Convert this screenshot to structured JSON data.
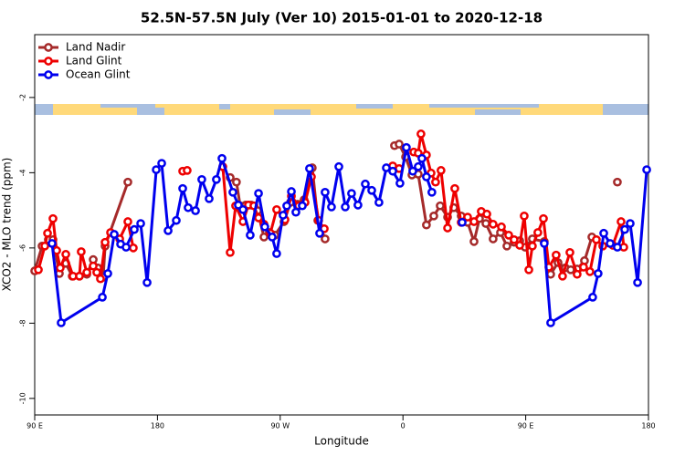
{
  "chart_data": {
    "type": "line",
    "title": "52.5N-57.5N July (Ver 10)   2015-01-01 to 2020-12-18",
    "x_label": "Longitude",
    "y_label": "XCO2 - MLO trend (ppm)",
    "xlim": [
      90,
      540
    ],
    "xticks": [
      {
        "value": 90,
        "label": "90 E"
      },
      180,
      {
        "value": 270,
        "label": "90 W"
      },
      {
        "value": 360,
        "label": "0"
      },
      {
        "value": 450,
        "label": "90 E"
      },
      {
        "value": 540,
        "label": "180"
      }
    ],
    "ylim": [
      -10.44,
      -0.33
    ],
    "yticks": [
      -10,
      -8,
      -6,
      -4,
      -2
    ],
    "legend": "top-left",
    "series": [
      {
        "name": "Land Nadir",
        "color": "#a52a2a",
        "x": [
          90.0,
          95.4,
          100.0,
          103.4,
          108.1,
          112.8,
          117.5,
          122.8,
          128.2,
          132.9,
          136.2,
          140.2,
          141.6,
          158.3,
          null,
          233.3,
          237.9,
          240.7,
          244.7,
          248.7,
          253.4,
          258.1,
          262.1,
          266.1,
          272.8,
          277.5,
          282.8,
          287.5,
          293.5,
          297.6,
          302.9,
          null,
          353.8,
          357.2,
          361.9,
          366.6,
          371.2,
          377.2,
          382.6,
          387.3,
          392.7,
          397.3,
          402.7,
          407.4,
          412.1,
          416.1,
          420.8,
          426.1,
          431.5,
          436.2,
          441.5,
          445.6,
          449.6,
          454.9,
          463.6,
          468.3,
          473.7,
          479.0,
          483.0,
          487.7,
          493.1,
          498.5,
          null,
          517.2
        ],
        "values": [
          -6.61,
          -5.95,
          -5.78,
          -5.78,
          -6.68,
          -6.41,
          -6.75,
          -6.75,
          -6.7,
          -6.31,
          -6.53,
          -6.78,
          -5.95,
          -4.25,
          null,
          -4.13,
          -4.25,
          -4.88,
          -4.86,
          -4.86,
          -5.01,
          -5.71,
          -5.59,
          -5.66,
          -5.3,
          -4.79,
          -4.84,
          -4.72,
          -3.87,
          -5.27,
          -5.76,
          null,
          -3.28,
          -3.24,
          -3.58,
          -4.06,
          -4.04,
          -5.39,
          -5.15,
          -4.88,
          -5.18,
          -4.93,
          -5.15,
          -5.32,
          -5.83,
          -5.22,
          -5.35,
          -5.76,
          -5.59,
          -5.95,
          -5.85,
          -5.81,
          -5.98,
          -5.76,
          -5.83,
          -6.7,
          -6.39,
          -6.53,
          -6.58,
          -6.56,
          -6.34,
          -5.71,
          null,
          -4.25
        ]
      },
      {
        "name": "Land Glint",
        "color": "#ee0000",
        "x": [
          92.7,
          97.4,
          99.4,
          103.4,
          106.1,
          108.7,
          112.8,
          118.1,
          122.8,
          124.1,
          128.2,
          132.9,
          135.5,
          138.2,
          141.6,
          145.6,
          152.3,
          158.3,
          162.3,
          null,
          198.5,
          201.8,
          null,
          227.9,
          233.3,
          237.3,
          242.7,
          246.7,
          250.7,
          254.1,
          258.1,
          262.8,
          267.4,
          273.5,
          278.2,
          283.5,
          288.2,
          292.9,
          298.2,
          302.3,
          null,
          352.5,
          357.2,
          null,
          367.9,
          371.2,
          373.2,
          377.2,
          380.6,
          383.9,
          387.9,
          392.7,
          398.0,
          402.7,
          407.4,
          412.1,
          417.4,
          421.5,
          426.1,
          432.2,
          437.5,
          441.5,
          445.6,
          448.9,
          452.3,
          454.9,
          458.9,
          463.0,
          467.0,
          472.3,
          477.0,
          482.4,
          487.7,
          492.4,
          497.1,
          501.8,
          506.5,
          513.9,
          519.9,
          521.9
        ],
        "values": [
          -6.58,
          -5.95,
          -5.61,
          -5.22,
          -6.07,
          -6.53,
          -6.17,
          -6.75,
          -6.75,
          -6.1,
          -6.65,
          -6.48,
          -6.65,
          -6.82,
          -5.85,
          -5.59,
          -5.76,
          -5.3,
          -6.0,
          null,
          -3.96,
          -3.94,
          null,
          -3.84,
          -6.12,
          -4.88,
          -5.3,
          -4.86,
          -4.88,
          -5.2,
          -5.37,
          -5.61,
          -4.98,
          -5.25,
          -4.62,
          -4.88,
          -4.79,
          -4.11,
          -5.27,
          -5.49,
          null,
          -3.82,
          -3.89,
          null,
          -3.45,
          -3.48,
          -2.97,
          -3.53,
          -4.01,
          -4.25,
          -3.94,
          -5.47,
          -4.42,
          -5.32,
          -5.18,
          -5.3,
          -5.03,
          -5.1,
          -5.37,
          -5.44,
          -5.66,
          -5.78,
          -5.93,
          -5.15,
          -6.58,
          -5.95,
          -5.59,
          -5.22,
          -6.51,
          -6.19,
          -6.75,
          -6.12,
          -6.7,
          -6.51,
          -6.63,
          -5.78,
          -5.95,
          -5.93,
          -5.3,
          -5.98
        ]
      },
      {
        "name": "Ocean Glint",
        "color": "#0000ee",
        "x": [
          102.7,
          109.4,
          139.6,
          143.6,
          148.3,
          153.0,
          157.0,
          163.0,
          167.7,
          172.4,
          179.1,
          183.1,
          187.8,
          193.8,
          198.5,
          202.5,
          207.9,
          212.5,
          217.9,
          223.2,
          227.3,
          235.3,
          239.3,
          242.7,
          248.0,
          254.1,
          258.7,
          264.1,
          267.4,
          272.1,
          274.8,
          278.2,
          281.5,
          286.2,
          291.5,
          298.9,
          302.9,
          307.6,
          313.0,
          317.7,
          322.3,
          327.0,
          332.4,
          337.1,
          342.4,
          347.8,
          352.5,
          357.8,
          362.5,
          367.2,
          371.2,
          373.9,
          377.2,
          381.2,
          null,
          403.4,
          null,
          463.6,
          468.3,
          499.1,
          503.1,
          507.2,
          511.9,
          517.2,
          522.6,
          526.6,
          532.0,
          538.7
        ],
        "values": [
          -5.88,
          -7.99,
          -7.31,
          -6.68,
          -5.64,
          -5.9,
          -5.98,
          -5.51,
          -5.35,
          -6.92,
          -3.92,
          -3.75,
          -5.54,
          -5.27,
          -4.42,
          -4.93,
          -5.01,
          -4.18,
          -4.69,
          -4.18,
          -3.62,
          -4.52,
          -4.86,
          -4.98,
          -5.66,
          -4.55,
          -5.44,
          -5.71,
          -6.15,
          -5.13,
          -4.88,
          -4.5,
          -5.05,
          -4.88,
          -3.89,
          -5.61,
          -4.52,
          -4.91,
          -3.84,
          -4.91,
          -4.55,
          -4.86,
          -4.3,
          -4.47,
          -4.79,
          -3.87,
          -3.96,
          -4.28,
          -3.33,
          -3.96,
          -3.84,
          -3.62,
          -4.11,
          -4.52,
          null,
          -5.32,
          null,
          -5.88,
          -7.99,
          -7.31,
          -6.68,
          -5.61,
          -5.88,
          -5.98,
          -5.51,
          -5.35,
          -6.92,
          -3.92
        ]
      }
    ]
  }
}
